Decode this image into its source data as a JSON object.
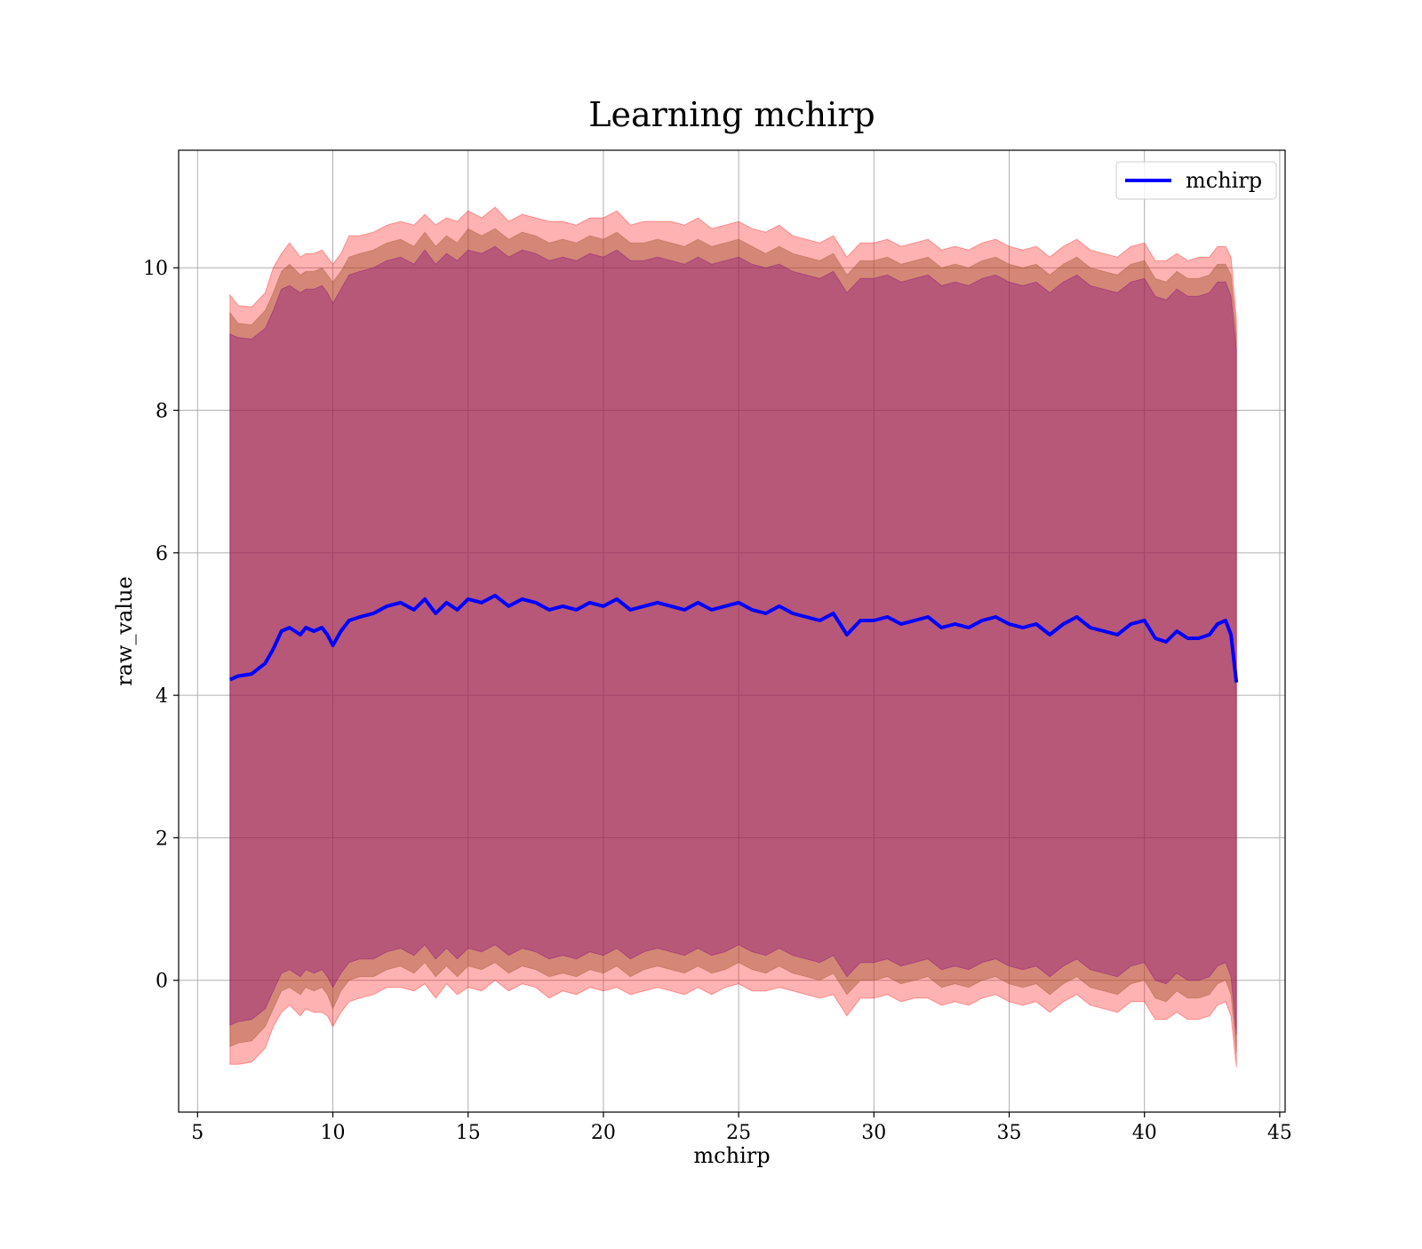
{
  "chart_data": {
    "type": "area",
    "title": "Learning mchirp",
    "xlabel": "mchirp",
    "ylabel": "raw_value",
    "xlim": [
      4.3,
      45.2
    ],
    "ylim": [
      -1.85,
      11.65
    ],
    "xticks": [
      5,
      10,
      15,
      20,
      25,
      30,
      35,
      40,
      45
    ],
    "yticks": [
      0,
      2,
      4,
      6,
      8,
      10
    ],
    "x_tick_labels": [
      "5",
      "10",
      "15",
      "20",
      "25",
      "30",
      "35",
      "40",
      "45"
    ],
    "y_tick_labels": [
      "0",
      "2",
      "4",
      "6",
      "8",
      "10"
    ],
    "grid": true,
    "legend": {
      "position": "top-right",
      "entries": [
        "mchirp"
      ]
    },
    "colors": {
      "line": "#0000ff",
      "band_outer": "#ff0000",
      "band_middle": "#a0522d",
      "band_inner": "#800080"
    },
    "series": [
      {
        "name": "mchirp",
        "x": [
          6.2,
          6.5,
          7.0,
          7.5,
          7.8,
          8.1,
          8.4,
          8.8,
          9.0,
          9.3,
          9.6,
          9.8,
          10.0,
          10.3,
          10.6,
          11.0,
          11.5,
          12.0,
          12.5,
          13.0,
          13.4,
          13.8,
          14.2,
          14.6,
          15.0,
          15.5,
          16.0,
          16.5,
          17.0,
          17.5,
          18.0,
          18.5,
          19.0,
          19.5,
          20.0,
          20.5,
          21.0,
          21.5,
          22.0,
          22.5,
          23.0,
          23.5,
          24.0,
          24.5,
          25.0,
          25.5,
          26.0,
          26.5,
          27.0,
          27.5,
          28.0,
          28.5,
          29.0,
          29.5,
          30.0,
          30.5,
          31.0,
          31.5,
          32.0,
          32.5,
          33.0,
          33.5,
          34.0,
          34.5,
          35.0,
          35.5,
          36.0,
          36.5,
          37.0,
          37.5,
          38.0,
          38.5,
          39.0,
          39.5,
          40.0,
          40.4,
          40.8,
          41.2,
          41.6,
          42.0,
          42.4,
          42.7,
          43.0,
          43.2,
          43.4
        ],
        "y": [
          4.22,
          4.27,
          4.3,
          4.45,
          4.65,
          4.9,
          4.95,
          4.85,
          4.95,
          4.9,
          4.95,
          4.85,
          4.7,
          4.9,
          5.05,
          5.1,
          5.15,
          5.25,
          5.3,
          5.2,
          5.35,
          5.15,
          5.3,
          5.2,
          5.35,
          5.3,
          5.4,
          5.25,
          5.35,
          5.3,
          5.2,
          5.25,
          5.2,
          5.3,
          5.25,
          5.35,
          5.2,
          5.25,
          5.3,
          5.25,
          5.2,
          5.3,
          5.2,
          5.25,
          5.3,
          5.2,
          5.15,
          5.25,
          5.15,
          5.1,
          5.05,
          5.15,
          4.85,
          5.05,
          5.05,
          5.1,
          5.0,
          5.05,
          5.1,
          4.95,
          5.0,
          4.95,
          5.05,
          5.1,
          5.0,
          4.95,
          5.0,
          4.85,
          5.0,
          5.1,
          4.95,
          4.9,
          4.85,
          5.0,
          5.05,
          4.8,
          4.75,
          4.9,
          4.8,
          4.8,
          4.85,
          5.0,
          5.05,
          4.85,
          4.18
        ]
      }
    ],
    "bands": [
      {
        "kind": "outer",
        "upper_offset": [
          5.4,
          5.2,
          5.15,
          5.2,
          5.35,
          5.3,
          5.4,
          5.3,
          5.25,
          5.3,
          5.3,
          5.3,
          5.35,
          5.3,
          5.4,
          5.35,
          5.35,
          5.35,
          5.35,
          5.4,
          5.4,
          5.45,
          5.4,
          5.45,
          5.45,
          5.4,
          5.45,
          5.4,
          5.4,
          5.4,
          5.45,
          5.4,
          5.4,
          5.4,
          5.45,
          5.45,
          5.4,
          5.4,
          5.35,
          5.4,
          5.4,
          5.4,
          5.35,
          5.35,
          5.35,
          5.35,
          5.35,
          5.35,
          5.3,
          5.3,
          5.3,
          5.3,
          5.3,
          5.3,
          5.3,
          5.3,
          5.3,
          5.3,
          5.3,
          5.3,
          5.3,
          5.3,
          5.3,
          5.3,
          5.3,
          5.3,
          5.3,
          5.3,
          5.3,
          5.3,
          5.3,
          5.3,
          5.3,
          5.3,
          5.3,
          5.3,
          5.35,
          5.3,
          5.3,
          5.35,
          5.3,
          5.3,
          5.25,
          5.3,
          5.1
        ],
        "lower_offset": [
          5.4,
          5.45,
          5.45,
          5.4,
          5.3,
          5.35,
          5.3,
          5.35,
          5.35,
          5.35,
          5.4,
          5.35,
          5.35,
          5.35,
          5.35,
          5.35,
          5.35,
          5.35,
          5.4,
          5.35,
          5.4,
          5.4,
          5.35,
          5.4,
          5.45,
          5.45,
          5.4,
          5.4,
          5.4,
          5.4,
          5.45,
          5.4,
          5.4,
          5.4,
          5.4,
          5.45,
          5.4,
          5.4,
          5.4,
          5.4,
          5.4,
          5.4,
          5.4,
          5.35,
          5.35,
          5.35,
          5.3,
          5.35,
          5.3,
          5.3,
          5.3,
          5.35,
          5.35,
          5.3,
          5.3,
          5.3,
          5.3,
          5.3,
          5.35,
          5.3,
          5.3,
          5.3,
          5.3,
          5.3,
          5.3,
          5.3,
          5.3,
          5.3,
          5.3,
          5.3,
          5.3,
          5.3,
          5.3,
          5.3,
          5.35,
          5.35,
          5.3,
          5.35,
          5.35,
          5.35,
          5.35,
          5.35,
          5.35,
          5.35,
          5.4
        ]
      },
      {
        "kind": "middle",
        "upper_offset": [
          5.15,
          4.95,
          4.9,
          4.95,
          5.0,
          5.05,
          5.1,
          5.05,
          5.0,
          5.05,
          5.05,
          5.05,
          5.1,
          5.05,
          5.1,
          5.1,
          5.1,
          5.1,
          5.1,
          5.1,
          5.15,
          5.15,
          5.15,
          5.15,
          5.2,
          5.15,
          5.15,
          5.15,
          5.15,
          5.15,
          5.15,
          5.15,
          5.15,
          5.15,
          5.15,
          5.15,
          5.15,
          5.1,
          5.1,
          5.1,
          5.1,
          5.1,
          5.1,
          5.1,
          5.1,
          5.1,
          5.05,
          5.05,
          5.05,
          5.05,
          5.05,
          5.05,
          5.05,
          5.05,
          5.05,
          5.05,
          5.05,
          5.05,
          5.05,
          5.05,
          5.05,
          5.05,
          5.05,
          5.05,
          5.05,
          5.05,
          5.05,
          5.05,
          5.05,
          5.05,
          5.05,
          5.05,
          5.05,
          5.05,
          5.05,
          5.05,
          5.05,
          5.05,
          5.05,
          5.05,
          5.05,
          5.05,
          5.0,
          5.05,
          4.9
        ],
        "lower_offset": [
          5.15,
          5.15,
          5.15,
          5.1,
          5.05,
          5.05,
          5.05,
          5.05,
          5.05,
          5.05,
          5.05,
          5.05,
          5.1,
          5.05,
          5.05,
          5.05,
          5.1,
          5.1,
          5.1,
          5.1,
          5.1,
          5.1,
          5.1,
          5.15,
          5.15,
          5.15,
          5.15,
          5.15,
          5.15,
          5.15,
          5.15,
          5.15,
          5.15,
          5.15,
          5.15,
          5.15,
          5.15,
          5.1,
          5.1,
          5.1,
          5.1,
          5.1,
          5.1,
          5.1,
          5.05,
          5.05,
          5.05,
          5.05,
          5.05,
          5.05,
          5.05,
          5.05,
          5.05,
          5.05,
          5.05,
          5.05,
          5.05,
          5.05,
          5.05,
          5.05,
          5.05,
          5.05,
          5.05,
          5.05,
          5.05,
          5.05,
          5.05,
          5.05,
          5.05,
          5.05,
          5.05,
          5.05,
          5.05,
          5.05,
          5.05,
          5.05,
          5.05,
          5.05,
          5.05,
          5.05,
          5.05,
          5.05,
          5.05,
          5.05,
          5.2
        ]
      },
      {
        "kind": "inner",
        "upper_offset": [
          4.85,
          4.75,
          4.7,
          4.7,
          4.75,
          4.8,
          4.8,
          4.8,
          4.75,
          4.8,
          4.8,
          4.8,
          4.8,
          4.8,
          4.85,
          4.85,
          4.85,
          4.85,
          4.85,
          4.85,
          4.9,
          4.9,
          4.9,
          4.9,
          4.9,
          4.9,
          4.9,
          4.9,
          4.9,
          4.9,
          4.9,
          4.9,
          4.9,
          4.9,
          4.9,
          4.9,
          4.9,
          4.85,
          4.85,
          4.85,
          4.85,
          4.85,
          4.85,
          4.85,
          4.85,
          4.85,
          4.85,
          4.8,
          4.8,
          4.8,
          4.8,
          4.8,
          4.8,
          4.8,
          4.8,
          4.8,
          4.8,
          4.8,
          4.8,
          4.8,
          4.8,
          4.8,
          4.8,
          4.8,
          4.8,
          4.8,
          4.8,
          4.8,
          4.8,
          4.8,
          4.8,
          4.8,
          4.8,
          4.8,
          4.8,
          4.8,
          4.8,
          4.8,
          4.8,
          4.8,
          4.8,
          4.8,
          4.75,
          4.75,
          4.65
        ],
        "lower_offset": [
          4.85,
          4.85,
          4.85,
          4.85,
          4.8,
          4.8,
          4.8,
          4.8,
          4.8,
          4.8,
          4.8,
          4.8,
          4.8,
          4.8,
          4.8,
          4.8,
          4.85,
          4.85,
          4.85,
          4.85,
          4.85,
          4.85,
          4.85,
          4.9,
          4.9,
          4.9,
          4.9,
          4.9,
          4.9,
          4.9,
          4.9,
          4.9,
          4.9,
          4.9,
          4.9,
          4.9,
          4.9,
          4.85,
          4.85,
          4.85,
          4.85,
          4.85,
          4.85,
          4.85,
          4.8,
          4.8,
          4.8,
          4.8,
          4.8,
          4.8,
          4.8,
          4.8,
          4.8,
          4.8,
          4.8,
          4.8,
          4.8,
          4.8,
          4.8,
          4.8,
          4.8,
          4.8,
          4.8,
          4.8,
          4.8,
          4.8,
          4.8,
          4.8,
          4.8,
          4.8,
          4.8,
          4.8,
          4.8,
          4.8,
          4.8,
          4.8,
          4.8,
          4.8,
          4.8,
          4.8,
          4.8,
          4.8,
          4.8,
          4.8,
          4.95
        ]
      }
    ]
  }
}
